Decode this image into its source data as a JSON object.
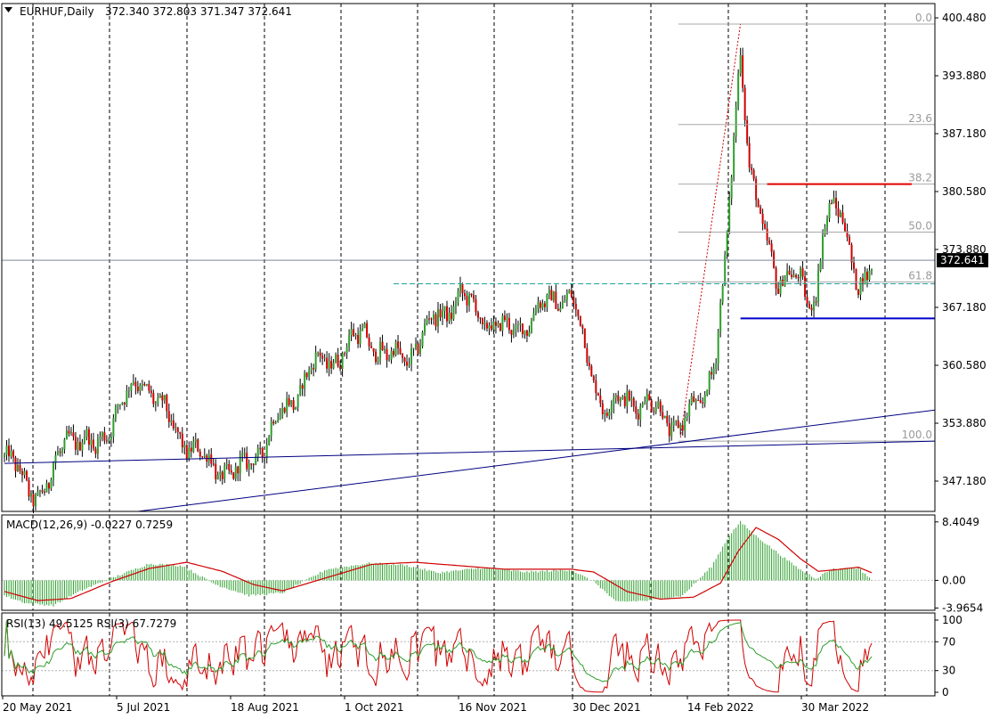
{
  "header": {
    "symbol": "EURHUF,Daily",
    "ohlc": "372.340 372.803 371.347 372.641"
  },
  "colors": {
    "bull": "#2e9e2e",
    "bear": "#d00000",
    "wick": "#000000",
    "grid": "#000000",
    "trend": "#000080",
    "support": "#0000cc",
    "resistance": "#e00000",
    "fib": "#a8a8a8",
    "macd_hist": "#2e9e2e",
    "macd_signal": "#d00000",
    "rsi13": "#2e9e2e",
    "rsi3": "#d00000"
  },
  "chart_data": {
    "type": "candlestick",
    "x_labels": [
      "20 May 2021",
      "5 Jul 2021",
      "18 Aug 2021",
      "1 Oct 2021",
      "16 Nov 2021",
      "30 Dec 2021",
      "14 Feb 2022",
      "30 Mar 2022"
    ],
    "price": {
      "y_ticks": [
        "400.480",
        "393.880",
        "387.180",
        "380.580",
        "373.880",
        "367.180",
        "360.580",
        "353.880",
        "347.180"
      ],
      "ylim": [
        344.4,
        401.5
      ],
      "current": "372.641",
      "anchors": [
        [
          0,
          350.5
        ],
        [
          15,
          346.2
        ],
        [
          20,
          347.0
        ],
        [
          28,
          353.5
        ],
        [
          40,
          351.2
        ],
        [
          50,
          355.5
        ],
        [
          62,
          359.5
        ],
        [
          75,
          354.0
        ],
        [
          90,
          350.0
        ],
        [
          105,
          348.5
        ],
        [
          115,
          351.5
        ],
        [
          128,
          356.5
        ],
        [
          138,
          360.5
        ],
        [
          150,
          362.0
        ],
        [
          162,
          364.5
        ],
        [
          172,
          361.5
        ],
        [
          182,
          362.0
        ],
        [
          195,
          366.5
        ],
        [
          205,
          368.5
        ],
        [
          216,
          366.0
        ],
        [
          226,
          364.5
        ],
        [
          236,
          366.0
        ],
        [
          248,
          368.5
        ],
        [
          255,
          368.8
        ],
        [
          262,
          361.5
        ],
        [
          270,
          356.0
        ],
        [
          280,
          356.8
        ],
        [
          288,
          357.0
        ],
        [
          295,
          355.0
        ],
        [
          300,
          354.2
        ],
        [
          308,
          355.2
        ],
        [
          314,
          356.5
        ],
        [
          320,
          363.0
        ],
        [
          324,
          372.0
        ],
        [
          327,
          382.0
        ],
        [
          331,
          396.0
        ],
        [
          335,
          384.0
        ],
        [
          339,
          379.0
        ],
        [
          343,
          373.5
        ],
        [
          348,
          369.5
        ],
        [
          353,
          372.5
        ],
        [
          358,
          370.0
        ],
        [
          362,
          366.5
        ],
        [
          365,
          368.0
        ],
        [
          368,
          377.0
        ],
        [
          372,
          379.5
        ],
        [
          376,
          377.5
        ],
        [
          380,
          373.0
        ],
        [
          384,
          370.0
        ],
        [
          387,
          371.5
        ],
        [
          390,
          372.6
        ]
      ],
      "trendlines": [
        [
          [
            0,
            349.8
          ],
          [
            420,
            352.3
          ]
        ],
        [
          [
            60,
            344.4
          ],
          [
            420,
            355.8
          ]
        ]
      ],
      "support": {
        "value": 366.1,
        "x0": 331,
        "x1": 420
      },
      "resistance": {
        "value": 381.2,
        "x0": 343,
        "x1": 408
      },
      "prev_high_dashed": {
        "value": 370.0,
        "x0": 175,
        "x1": 420
      },
      "fib_lines": [
        {
          "label": "0.0",
          "value": 399.2
        },
        {
          "label": "23.6",
          "value": 387.9
        },
        {
          "label": "38.2",
          "value": 381.2
        },
        {
          "label": "50.0",
          "value": 375.8
        },
        {
          "label": "61.8",
          "value": 370.2
        },
        {
          "label": "100.0",
          "value": 352.3
        }
      ],
      "fib_x0": 303,
      "fib_x1": 420,
      "fib_diagonal": [
        [
          304,
          352.7
        ],
        [
          331,
          399.2
        ]
      ]
    },
    "macd": {
      "title": "MACD(12,26,9) -0.0227 0.7259",
      "y_ticks": [
        "8.4049",
        "0.00",
        "-3.9654"
      ],
      "ylim": [
        -4.3,
        9.4
      ],
      "anchors": [
        [
          0,
          -2.2
        ],
        [
          10,
          -3.3
        ],
        [
          22,
          -3.6
        ],
        [
          35,
          -1.4
        ],
        [
          48,
          0.3
        ],
        [
          65,
          2.4
        ],
        [
          80,
          2.1
        ],
        [
          95,
          -0.6
        ],
        [
          110,
          -2.2
        ],
        [
          125,
          -1.8
        ],
        [
          145,
          1.6
        ],
        [
          165,
          2.5
        ],
        [
          180,
          2.2
        ],
        [
          195,
          1.1
        ],
        [
          215,
          1.8
        ],
        [
          235,
          1.2
        ],
        [
          255,
          1.5
        ],
        [
          266,
          -0.4
        ],
        [
          275,
          -3.1
        ],
        [
          290,
          -2.9
        ],
        [
          305,
          -2.2
        ],
        [
          318,
          2.0
        ],
        [
          326,
          6.5
        ],
        [
          331,
          8.4
        ],
        [
          338,
          6.4
        ],
        [
          350,
          3.4
        ],
        [
          358,
          1.5
        ],
        [
          365,
          0.3
        ],
        [
          372,
          1.6
        ],
        [
          384,
          1.8
        ],
        [
          390,
          0.1
        ]
      ],
      "signal_anchors": [
        [
          0,
          -1.6
        ],
        [
          15,
          -2.9
        ],
        [
          30,
          -2.6
        ],
        [
          48,
          -0.2
        ],
        [
          65,
          1.7
        ],
        [
          82,
          2.6
        ],
        [
          98,
          1.3
        ],
        [
          112,
          -0.6
        ],
        [
          125,
          -1.5
        ],
        [
          145,
          0.4
        ],
        [
          165,
          2.3
        ],
        [
          185,
          2.6
        ],
        [
          205,
          2.1
        ],
        [
          225,
          1.6
        ],
        [
          255,
          1.6
        ],
        [
          265,
          1.2
        ],
        [
          280,
          -1.6
        ],
        [
          295,
          -2.7
        ],
        [
          310,
          -2.4
        ],
        [
          322,
          -0.4
        ],
        [
          330,
          4.2
        ],
        [
          338,
          7.6
        ],
        [
          348,
          5.9
        ],
        [
          358,
          3.1
        ],
        [
          366,
          1.3
        ],
        [
          376,
          1.6
        ],
        [
          384,
          1.9
        ],
        [
          390,
          1.1
        ]
      ]
    },
    "rsi": {
      "title": "RSI(13) 49.5125  RSI(3) 67.7279",
      "y_ticks": [
        "100",
        "70",
        "30",
        "0"
      ],
      "levels": [
        70,
        30
      ],
      "ylim": [
        0,
        100
      ],
      "rsi13_current": 49.5125,
      "rsi3_current": 67.7279
    },
    "n_bars": 391
  }
}
